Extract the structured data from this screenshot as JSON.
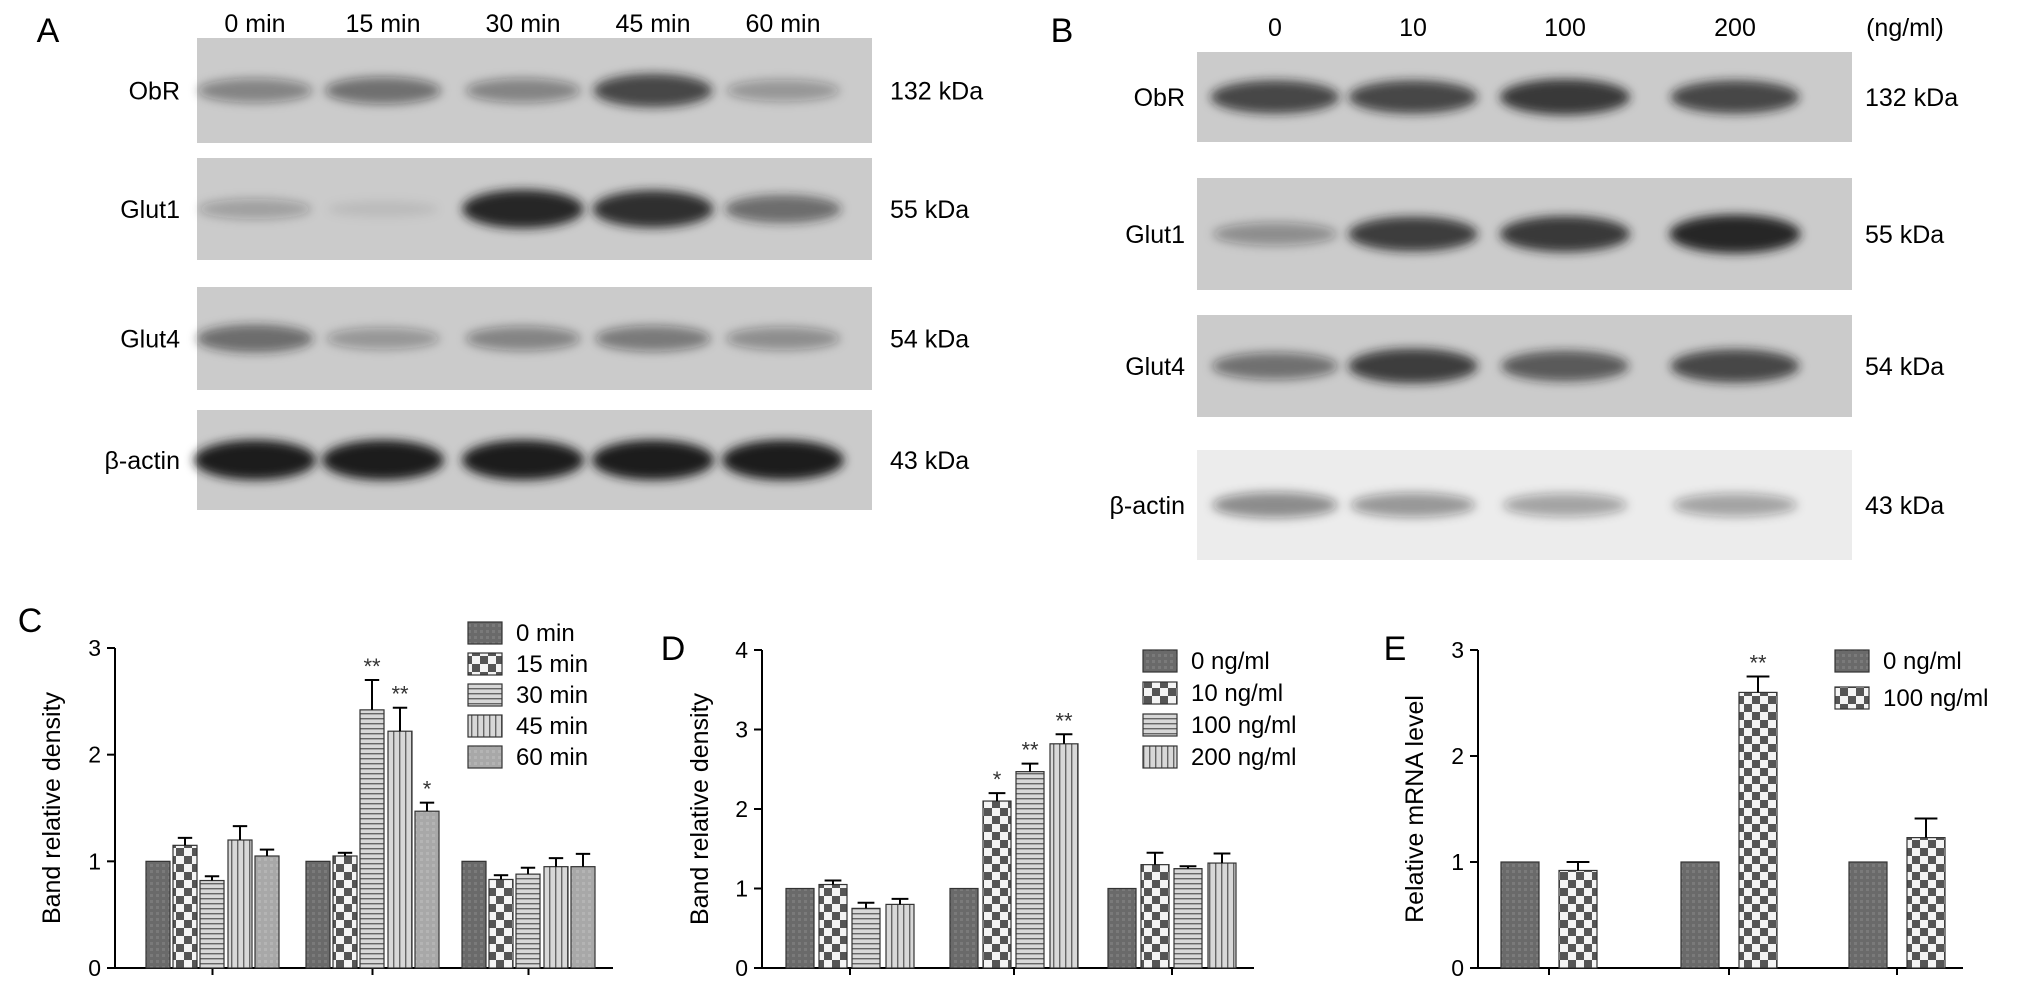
{
  "colors": {
    "bar_0": "#6e6e6e",
    "bar_1": "#dcdcdc",
    "bar_2": "#cfcfcf",
    "bar_3": "#c0c0c0",
    "bar_4": "#9b9b9b",
    "blot_bg": "#cbcbcb",
    "band": "#1c1c1c"
  },
  "panels": {
    "A": {
      "letter": "A",
      "lanes": [
        "0 min",
        "15 min",
        "30 min",
        "45 min",
        "60 min"
      ],
      "rows": [
        {
          "label": "ObR",
          "kda": "132 kDa",
          "intensity": [
            0.4,
            0.5,
            0.4,
            0.75,
            0.3
          ]
        },
        {
          "label": "Glut1",
          "kda": "55 kDa",
          "intensity": [
            0.25,
            0.08,
            0.95,
            0.9,
            0.55
          ]
        },
        {
          "label": "Glut4",
          "kda": "54 kDa",
          "intensity": [
            0.55,
            0.3,
            0.4,
            0.45,
            0.35
          ]
        },
        {
          "label": "β-actin",
          "kda": "43 kDa",
          "intensity": [
            1.0,
            1.0,
            1.0,
            1.0,
            1.0
          ]
        }
      ]
    },
    "B": {
      "letter": "B",
      "lanes": [
        "0",
        "10",
        "100",
        "200"
      ],
      "unit": "(ng/ml)",
      "rows": [
        {
          "label": "ObR",
          "kda": "132 kDa",
          "intensity": [
            0.75,
            0.75,
            0.85,
            0.75
          ]
        },
        {
          "label": "Glut1",
          "kda": "55 kDa",
          "intensity": [
            0.35,
            0.8,
            0.85,
            0.95
          ]
        },
        {
          "label": "Glut4",
          "kda": "54 kDa",
          "intensity": [
            0.5,
            0.8,
            0.65,
            0.75
          ]
        },
        {
          "label": "β-actin",
          "kda": "43 kDa",
          "intensity": [
            0.45,
            0.4,
            0.35,
            0.35
          ]
        }
      ]
    }
  },
  "chart_data": [
    {
      "panel": "C",
      "type": "bar",
      "ylabel": "Band relative density",
      "ylim": [
        0,
        3
      ],
      "yticks": [
        0,
        1,
        2,
        3
      ],
      "legend": "top-right",
      "series": [
        {
          "name": "0 min",
          "values": [
            1.0,
            1.0,
            1.0
          ],
          "errors": [
            0,
            0,
            0
          ],
          "stars": [
            "",
            "",
            ""
          ]
        },
        {
          "name": "15 min",
          "values": [
            1.15,
            1.05,
            0.83
          ],
          "errors": [
            0.07,
            0.03,
            0.04
          ],
          "stars": [
            "",
            "",
            ""
          ]
        },
        {
          "name": "30 min",
          "values": [
            0.82,
            2.42,
            0.88
          ],
          "errors": [
            0.04,
            0.28,
            0.06
          ],
          "stars": [
            "",
            "**",
            ""
          ]
        },
        {
          "name": "45 min",
          "values": [
            1.2,
            2.22,
            0.95
          ],
          "errors": [
            0.13,
            0.22,
            0.08
          ],
          "stars": [
            "",
            "**",
            ""
          ]
        },
        {
          "name": "60 min",
          "values": [
            1.05,
            1.47,
            0.95
          ],
          "errors": [
            0.06,
            0.08,
            0.12
          ],
          "stars": [
            "",
            "*",
            ""
          ]
        }
      ]
    },
    {
      "panel": "D",
      "type": "bar",
      "ylabel": "Band relative density",
      "ylim": [
        0,
        4
      ],
      "yticks": [
        0,
        1,
        2,
        3,
        4
      ],
      "legend": "top-right",
      "series": [
        {
          "name": "0 ng/ml",
          "values": [
            1.0,
            1.0,
            1.0
          ],
          "errors": [
            0,
            0,
            0
          ],
          "stars": [
            "",
            "",
            ""
          ]
        },
        {
          "name": "10 ng/ml",
          "values": [
            1.05,
            2.1,
            1.3
          ],
          "errors": [
            0.05,
            0.1,
            0.15
          ],
          "stars": [
            "",
            "*",
            ""
          ]
        },
        {
          "name": "100 ng/ml",
          "values": [
            0.75,
            2.47,
            1.25
          ],
          "errors": [
            0.07,
            0.1,
            0.03
          ],
          "stars": [
            "",
            "**",
            ""
          ]
        },
        {
          "name": "200 ng/ml",
          "values": [
            0.8,
            2.82,
            1.32
          ],
          "errors": [
            0.07,
            0.12,
            0.12
          ],
          "stars": [
            "",
            "**",
            ""
          ]
        }
      ]
    },
    {
      "panel": "E",
      "type": "bar",
      "ylabel": "Relative mRNA level",
      "ylim": [
        0,
        3
      ],
      "yticks": [
        0,
        1,
        2,
        3
      ],
      "legend": "top-right",
      "series": [
        {
          "name": "0 ng/ml",
          "values": [
            1.0,
            1.0,
            1.0
          ],
          "errors": [
            0,
            0,
            0
          ],
          "stars": [
            "",
            "",
            ""
          ]
        },
        {
          "name": "100 ng/ml",
          "values": [
            0.92,
            2.6,
            1.23
          ],
          "errors": [
            0.08,
            0.15,
            0.18
          ],
          "stars": [
            "",
            "**",
            ""
          ]
        }
      ]
    }
  ]
}
